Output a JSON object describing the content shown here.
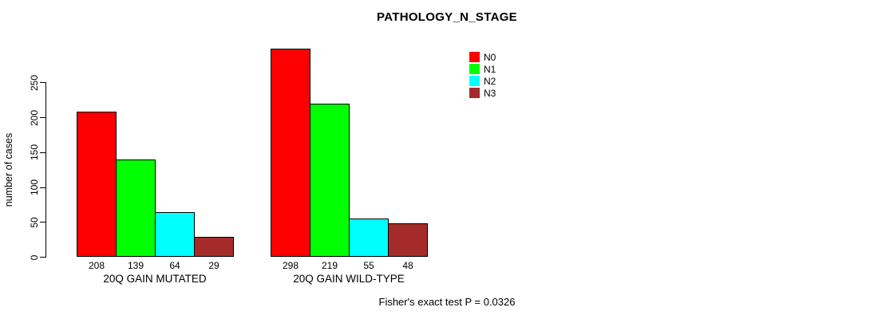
{
  "chart": {
    "title": "PATHOLOGY_N_STAGE",
    "ylabel": "number of cases",
    "footer": "Fisher's exact test P = 0.0326"
  },
  "chart_data": {
    "type": "bar",
    "title": "PATHOLOGY_N_STAGE",
    "xlabel": "",
    "ylabel": "number of cases",
    "ylim": [
      0,
      250
    ],
    "yticks": [
      0,
      50,
      100,
      150,
      200,
      250
    ],
    "grid": false,
    "legend_position": "top-right",
    "categories": [
      "20Q GAIN MUTATED",
      "20Q GAIN WILD-TYPE"
    ],
    "series": [
      {
        "name": "N0",
        "color": "#FF0000",
        "values": [
          208,
          298
        ]
      },
      {
        "name": "N1",
        "color": "#00FF00",
        "values": [
          139,
          219
        ]
      },
      {
        "name": "N2",
        "color": "#00FFFF",
        "values": [
          64,
          55
        ]
      },
      {
        "name": "N3",
        "color": "#A52A2A",
        "values": [
          29,
          48
        ]
      }
    ],
    "bar_value_labels": [
      [
        208,
        139,
        64,
        29
      ],
      [
        298,
        219,
        55,
        48
      ]
    ],
    "annotation": "Fisher's exact test P = 0.0326"
  }
}
